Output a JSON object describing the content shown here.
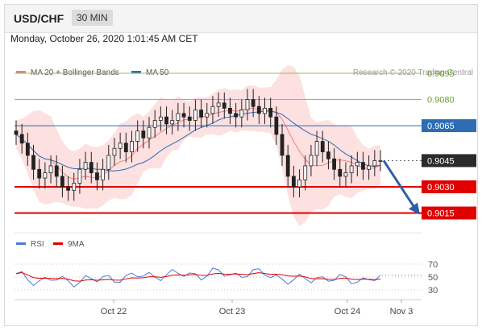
{
  "header": {
    "pair": "USD/CHF",
    "timeframe": "30 MIN"
  },
  "datetime": "Monday, October 26, 2020 1:01:45 AM CET",
  "legend": [
    {
      "label": "MA 20 + Bollinger Bands",
      "color": "#f08080"
    },
    {
      "label": "MA 50",
      "color": "#2e6db4"
    }
  ],
  "credit": "Research © 2020 Trading Central",
  "chart_data": [
    {
      "type": "candlestick",
      "x_ticks": [
        "Oct 22",
        "Oct 23",
        "Oct 24",
        "Nov 3"
      ],
      "ylim": [
        0.9006,
        0.9101
      ],
      "levels": [
        {
          "value": 0.9095,
          "label": "0.9095",
          "kind": "resistance",
          "color": "#8dc63f"
        },
        {
          "value": 0.908,
          "label": "0.9080",
          "kind": "resistance",
          "color": "#8dc63f"
        },
        {
          "value": 0.9065,
          "label": "0.9065",
          "kind": "pivot",
          "color": "#2e6db4"
        },
        {
          "value": 0.903,
          "label": "0.9030",
          "kind": "support",
          "color": "#e00000"
        },
        {
          "value": 0.9015,
          "label": "0.9015",
          "kind": "support",
          "color": "#e00000"
        }
      ],
      "last_price": {
        "value": 0.9045,
        "label": "0.9045"
      },
      "forecast_target": 0.9015,
      "price_path": [
        0.906,
        0.9055,
        0.9048,
        0.904,
        0.9035,
        0.9038,
        0.9042,
        0.9036,
        0.903,
        0.9028,
        0.9032,
        0.904,
        0.9044,
        0.9038,
        0.9034,
        0.904,
        0.9048,
        0.9052,
        0.9055,
        0.905,
        0.9056,
        0.9062,
        0.9058,
        0.9064,
        0.9068,
        0.907,
        0.9066,
        0.9068,
        0.9072,
        0.907,
        0.9068,
        0.9074,
        0.907,
        0.9072,
        0.9076,
        0.9078,
        0.9075,
        0.9072,
        0.907,
        0.9074,
        0.908,
        0.9076,
        0.9072,
        0.9075,
        0.907,
        0.906,
        0.9048,
        0.9036,
        0.903,
        0.9034,
        0.9042,
        0.9048,
        0.9056,
        0.905,
        0.9046,
        0.904,
        0.9036,
        0.9038,
        0.9042,
        0.9044,
        0.904,
        0.9042,
        0.9045,
        0.9045
      ],
      "series": [
        {
          "name": "MA 20 + Bollinger Bands",
          "color": "#f08080"
        },
        {
          "name": "MA 50",
          "color": "#2e6db4"
        }
      ]
    },
    {
      "type": "line",
      "ylim": [
        20,
        80
      ],
      "y_ticks": [
        70,
        50,
        30
      ],
      "series": [
        {
          "name": "RSI",
          "color": "#4a7bd8"
        },
        {
          "name": "9MA",
          "color": "#e00000"
        }
      ]
    }
  ]
}
